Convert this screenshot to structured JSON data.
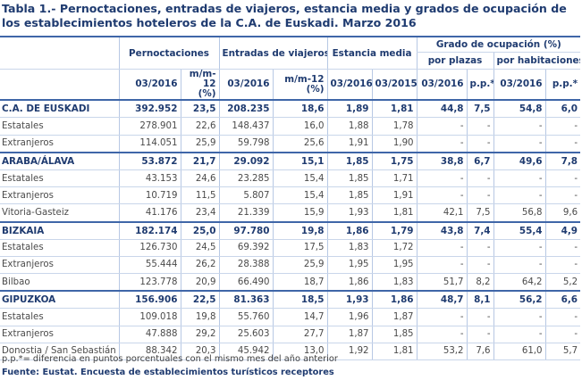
{
  "title": "Tabla 1.- Pernoctaciones, entradas de viajeros, estancia media y grados de ocupación de los establecimientos hoteleros de la C.A. de Euskadi. Marzo 2016",
  "table": {
    "header": {
      "groups": [
        "Pernoctaciones",
        "Entradas de viajeros",
        "Estancia media",
        "Grado de ocupación (%)"
      ],
      "subgroups": [
        "por plazas",
        "por habitaciones"
      ],
      "columns": [
        "03/2016",
        "m/m-12 (%)",
        "03/2016",
        "m/m-12 (%)",
        "03/2016",
        "03/2015",
        "03/2016",
        "p.p.*",
        "03/2016",
        "p.p.*"
      ]
    },
    "rows": [
      [
        "C.A. DE EUSKADI",
        "392.952",
        "23,5",
        "208.235",
        "18,6",
        "1,89",
        "1,81",
        "44,8",
        "7,5",
        "54,8",
        "6,0"
      ],
      [
        "Estatales",
        "278.901",
        "22,6",
        "148.437",
        "16,0",
        "1,88",
        "1,78",
        "-",
        "-",
        "-",
        "-"
      ],
      [
        "Extranjeros",
        "114.051",
        "25,9",
        "59.798",
        "25,6",
        "1,91",
        "1,90",
        "-",
        "-",
        "-",
        "-"
      ],
      [
        "ARABA/ÁLAVA",
        "53.872",
        "21,7",
        "29.092",
        "15,1",
        "1,85",
        "1,75",
        "38,8",
        "6,7",
        "49,6",
        "7,8"
      ],
      [
        "Estatales",
        "43.153",
        "24,6",
        "23.285",
        "15,4",
        "1,85",
        "1,71",
        "-",
        "-",
        "-",
        "-"
      ],
      [
        "Extranjeros",
        "10.719",
        "11,5",
        "5.807",
        "15,4",
        "1,85",
        "1,91",
        "-",
        "-",
        "-",
        "-"
      ],
      [
        "Vitoria-Gasteiz",
        "41.176",
        "23,4",
        "21.339",
        "15,9",
        "1,93",
        "1,81",
        "42,1",
        "7,5",
        "56,8",
        "9,6"
      ],
      [
        "BIZKAIA",
        "182.174",
        "25,0",
        "97.780",
        "19,8",
        "1,86",
        "1,79",
        "43,8",
        "7,4",
        "55,4",
        "4,9"
      ],
      [
        "Estatales",
        "126.730",
        "24,5",
        "69.392",
        "17,5",
        "1,83",
        "1,72",
        "-",
        "-",
        "-",
        "-"
      ],
      [
        "Extranjeros",
        "55.444",
        "26,2",
        "28.388",
        "25,9",
        "1,95",
        "1,95",
        "-",
        "-",
        "-",
        "-"
      ],
      [
        "Bilbao",
        "123.778",
        "20,9",
        "66.490",
        "18,7",
        "1,86",
        "1,83",
        "51,7",
        "8,2",
        "64,2",
        "5,2"
      ],
      [
        "GIPUZKOA",
        "156.906",
        "22,5",
        "81.363",
        "18,5",
        "1,93",
        "1,86",
        "48,7",
        "8,1",
        "56,2",
        "6,6"
      ],
      [
        "Estatales",
        "109.018",
        "19,8",
        "55.760",
        "14,7",
        "1,96",
        "1,87",
        "-",
        "-",
        "-",
        "-"
      ],
      [
        "Extranjeros",
        "47.888",
        "29,2",
        "25.603",
        "27,7",
        "1,87",
        "1,85",
        "-",
        "-",
        "-",
        "-"
      ],
      [
        "Donostia / San Sebastián",
        "88.342",
        "20,3",
        "45.942",
        "13,0",
        "1,92",
        "1,81",
        "53,2",
        "7,6",
        "61,0",
        "5,7"
      ]
    ]
  },
  "footnote": "p.p.*= diferencia en puntos porcentuales con el mismo mes del año anterior",
  "source": "Fuente: Eustat. Encuesta de establecimientos turísticos receptores"
}
